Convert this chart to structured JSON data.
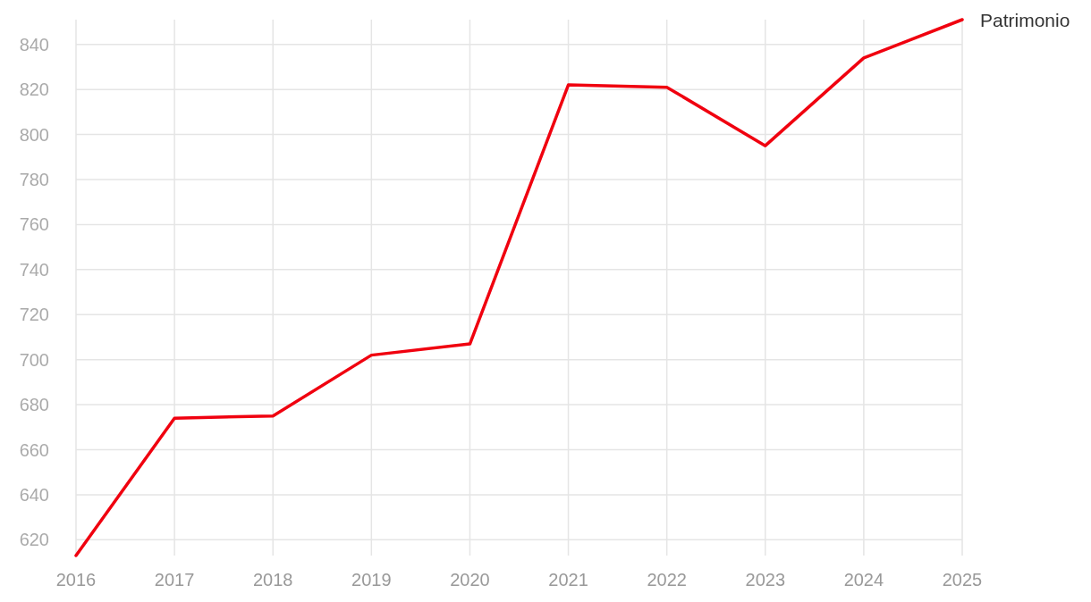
{
  "chart_data": {
    "type": "line",
    "x": [
      2016,
      2017,
      2018,
      2019,
      2020,
      2021,
      2022,
      2023,
      2024,
      2025
    ],
    "series": [
      {
        "name": "Patrimonio",
        "color": "#f0000f",
        "values": [
          613,
          674,
          675,
          702,
          707,
          822,
          821,
          795,
          834,
          851
        ]
      }
    ],
    "xlim": [
      2016,
      2025
    ],
    "xticks": [
      2016,
      2017,
      2018,
      2019,
      2020,
      2021,
      2022,
      2023,
      2024,
      2025
    ],
    "ylim": [
      613,
      851
    ],
    "yticks": [
      620,
      640,
      660,
      680,
      700,
      720,
      740,
      760,
      780,
      800,
      820,
      840
    ],
    "grid": true,
    "marker": "none",
    "line_style": "solid"
  }
}
